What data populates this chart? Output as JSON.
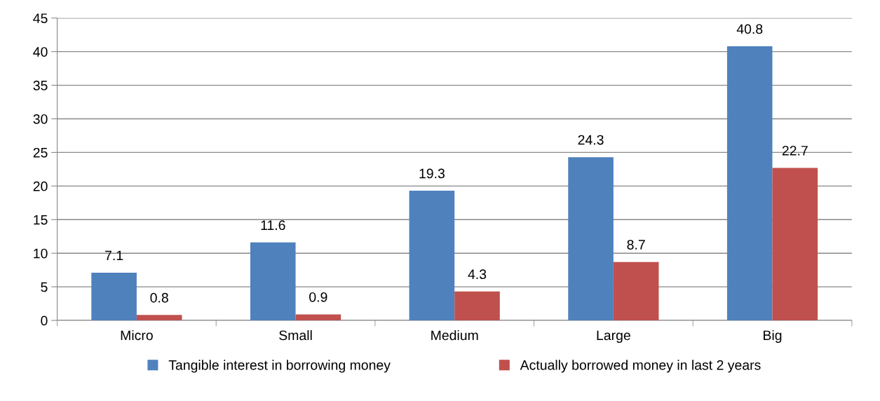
{
  "chart_data": {
    "type": "bar",
    "categories": [
      "Micro",
      "Small",
      "Medium",
      "Large",
      "Big"
    ],
    "series": [
      {
        "name": "Tangible interest in borrowing money",
        "color": "#4f81bd",
        "values": [
          7.1,
          11.6,
          19.3,
          24.3,
          40.8
        ]
      },
      {
        "name": "Actually borrowed money in last 2 years",
        "color": "#c0504d",
        "values": [
          0.8,
          0.9,
          4.3,
          8.7,
          22.7
        ]
      }
    ],
    "ylim": [
      0,
      45
    ],
    "yticks": [
      0,
      5,
      10,
      15,
      20,
      25,
      30,
      35,
      40,
      45
    ],
    "grid": "y",
    "legend": "bottom",
    "data_labels": true
  }
}
